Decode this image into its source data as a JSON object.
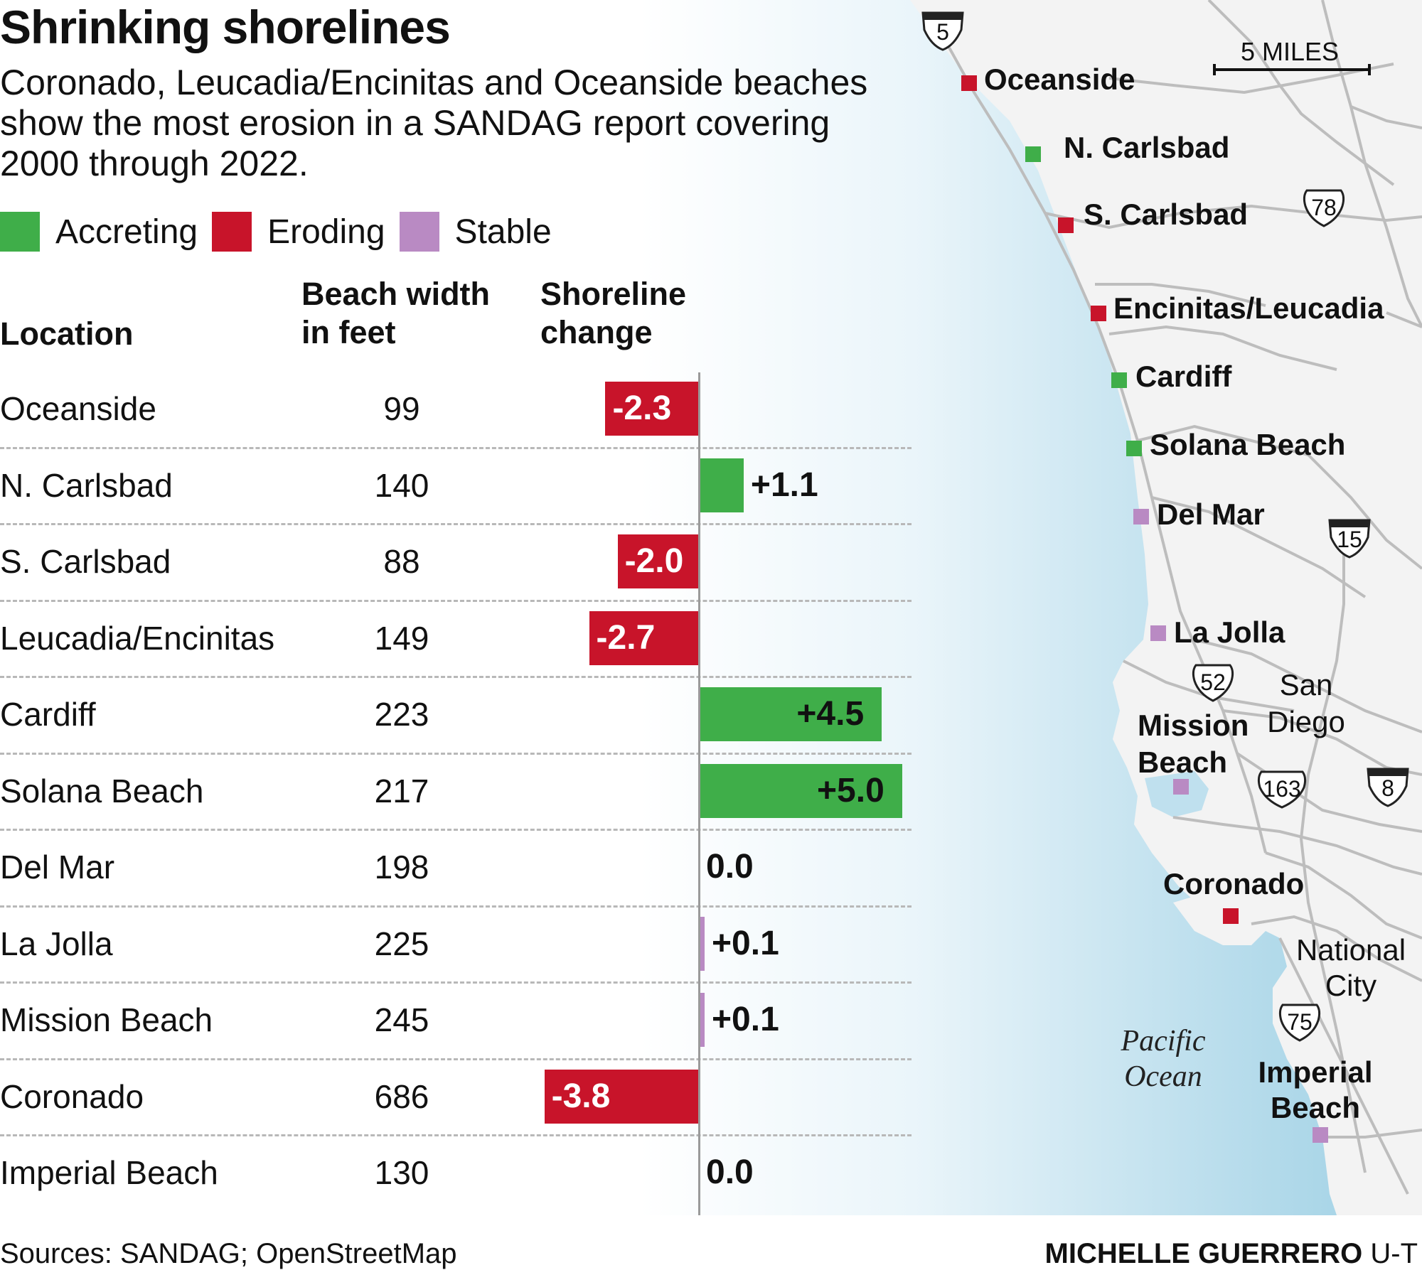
{
  "title": "Shrinking shorelines",
  "subtitle": "Coronado, Leucadia/Encinitas and Oceanside beaches show the most erosion in a SANDAG report covering 2000 through 2022.",
  "legend": [
    {
      "label": "Accreting",
      "color": "#3fae49"
    },
    {
      "label": "Eroding",
      "color": "#c8142a"
    },
    {
      "label": "Stable",
      "color": "#b98ac3"
    }
  ],
  "headers": {
    "location": "Location",
    "width_line1": "Beach width",
    "width_line2": "in feet",
    "change_line1": "Shoreline",
    "change_line2": "change"
  },
  "chart_data": {
    "type": "bar",
    "orientation": "horizontal",
    "categories": [
      "Oceanside",
      "N. Carlsbad",
      "S. Carlsbad",
      "Leucadia/Encinitas",
      "Cardiff",
      "Solana Beach",
      "Del Mar",
      "La Jolla",
      "Mission Beach",
      "Coronado",
      "Imperial Beach"
    ],
    "beach_width_ft": [
      99,
      140,
      88,
      149,
      223,
      217,
      198,
      225,
      245,
      686,
      130
    ],
    "values": [
      -2.3,
      1.1,
      -2.0,
      -2.7,
      4.5,
      5.0,
      0.0,
      0.1,
      0.1,
      -3.8,
      0.0
    ],
    "value_labels": [
      "-2.3",
      "+1.1",
      "-2.0",
      "-2.7",
      "+4.5",
      "+5.0",
      "0.0",
      "+0.1",
      "+0.1",
      "-3.8",
      "0.0"
    ],
    "status": [
      "Eroding",
      "Accreting",
      "Eroding",
      "Eroding",
      "Accreting",
      "Accreting",
      "Stable",
      "Stable",
      "Stable",
      "Eroding",
      "Stable"
    ],
    "colors": {
      "Accreting": "#3fae49",
      "Eroding": "#c8142a",
      "Stable": "#b98ac3"
    },
    "xlim": [
      -5.0,
      5.0
    ],
    "grid": "dashed row separators"
  },
  "map": {
    "labels": [
      "Oceanside",
      "N. Carlsbad",
      "S. Carlsbad",
      "Encinitas/Leucadia",
      "Cardiff",
      "Solana Beach",
      "Del Mar",
      "La Jolla",
      "Mission Beach",
      "Coronado",
      "Imperial Beach"
    ],
    "cities": {
      "san_diego": "San Diego",
      "national_city": "National City"
    },
    "ocean": "Pacific Ocean",
    "scale": "5 MILES",
    "shields": [
      "5",
      "78",
      "15",
      "52",
      "163",
      "8",
      "75"
    ]
  },
  "footer": {
    "sources": "Sources: SANDAG; OpenStreetMap",
    "credit_name": "MICHELLE GUERRERO",
    "credit_org": "U-T"
  }
}
